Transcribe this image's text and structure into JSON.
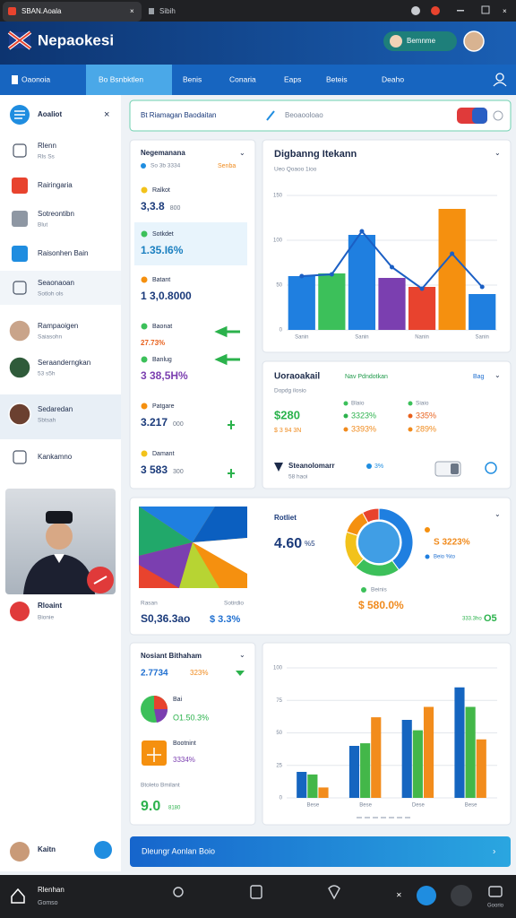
{
  "browser": {
    "tab1": "SBAN.Aoala",
    "tab2": "Sibih"
  },
  "header": {
    "title": "Nepaokesi",
    "pill": "Bemnme"
  },
  "nav": [
    "Oaonoia",
    "Bo Bsnbktlen",
    "Benis",
    "Conaria",
    "Eaps",
    "Beteis",
    "Deaho"
  ],
  "sidebar": {
    "title": "Aoaliot",
    "items": [
      {
        "label": "Rlenn",
        "sub": "Rls Ss"
      },
      {
        "label": "Rairingaria"
      },
      {
        "label": "Sotreontibn",
        "sub": "Blut"
      },
      {
        "label": "Raisonhen Bain"
      },
      {
        "label": "Seaonaoan",
        "sub": "Sotloh ols"
      },
      {
        "label": "Rampaoigen",
        "sub": "Saiasohn"
      },
      {
        "label": "Seraanderngkan",
        "sub": "53 s5h"
      },
      {
        "label": "Sedaredan",
        "sub": "Sbtsah"
      },
      {
        "label": "Kankamno"
      }
    ],
    "video": {
      "caption": "Rloaint",
      "sub": "Bionie"
    },
    "user": "Kaitn"
  },
  "search": {
    "label": "Bt Riamagan Baodaitan",
    "placeholder": "Beoaooloao"
  },
  "metrics": {
    "title": "Negemanana",
    "sub": "So 3b 3334",
    "badge": "Senba",
    "items": [
      {
        "label": "Ralkot",
        "value": "3,3.8",
        "unit": "800"
      },
      {
        "label": "Sotkdet",
        "value": "1.35.I6%"
      },
      {
        "label": "Batant",
        "value": "1 3,0.8000"
      },
      {
        "label": "Baonat",
        "value": "27.73%"
      },
      {
        "label": "Banlug",
        "value": "3 38,5H%"
      },
      {
        "label": "Patgare",
        "value": "3.217",
        "unit": "000"
      },
      {
        "label": "Damant",
        "value": "3 583",
        "unit": "300"
      }
    ]
  },
  "stats_card": {
    "title": "Uoraoakail",
    "tag": "Nav Pdndotkan",
    "link": "Bag",
    "sub": "Dopdg ilosio",
    "main": "$280",
    "main_sub": "$ 3 94  3N",
    "cols": [
      {
        "label": "Blaio",
        "a": "3323%",
        "b": "3393%"
      },
      {
        "label": "Siaio",
        "a": "335%",
        "b": "289%"
      }
    ],
    "row_title": "Steanolomarr",
    "row_sub": "58 haoi",
    "row_value": "3%"
  },
  "donut_card": {
    "left_a": "Rasan",
    "left_b": "Sotirdio",
    "left_value": "S0,36.3ao",
    "left_pct": "$ 3.3%",
    "title": "Rotliet",
    "big": "4.60",
    "big_unit": "%5",
    "legend_a": "S 3223%",
    "legend_b": "Beio %to",
    "bottom_label": "Beinis",
    "bottom_value": "$ 580.0%",
    "foot_a": "333.3ho",
    "foot_b": "O5"
  },
  "list_card": {
    "title": "Nosiant Bithaham",
    "value": "2.7734",
    "pct": "323%",
    "a_label": "Bai",
    "a_value": "O1.50.3%",
    "b_label": "Bootnint",
    "b_value": "3334%",
    "c_label": "Btoleto Bmilant",
    "c_value": "9.0",
    "c_unit": "8180"
  },
  "button": "Dleungr Aonlan Boio",
  "bottom_nav": {
    "a": "Rlenhan",
    "b": "Gomso",
    "c": "Goorio"
  },
  "chart_data": [
    {
      "type": "bar",
      "title": "Digbanng Itekann",
      "subtitle": "Ueo Qoaoo 1ioo",
      "categories": [
        "Sanin",
        null,
        "Sanin",
        null,
        "Nanin",
        null,
        "Sanin"
      ],
      "values": [
        60,
        63,
        106,
        58,
        48,
        135,
        40
      ],
      "colors": [
        "#1f7fe0",
        "#3cc05a",
        "#1f7fe0",
        "#7b3fb0",
        "#e8432e",
        "#f5900f",
        "#1f7fe0"
      ],
      "line_values": [
        60,
        62,
        110,
        70,
        46,
        85,
        48
      ],
      "line_color": "#1b5fc4",
      "ylim": [
        0,
        160
      ],
      "yticks": [
        0,
        50,
        100,
        150
      ],
      "grid": true
    },
    {
      "type": "pie",
      "donut": true,
      "values": [
        40,
        22,
        18,
        12,
        8
      ],
      "colors": [
        "#1f7fe0",
        "#3cc05a",
        "#f2c21b",
        "#f5900f",
        "#e8432e"
      ]
    },
    {
      "type": "bar",
      "categories": [
        "Bese",
        "Bese",
        "Dese",
        "Bese"
      ],
      "series": [
        {
          "color": "#1565c0",
          "values": [
            20,
            40,
            60,
            85
          ]
        },
        {
          "color": "#43b749",
          "values": [
            18,
            42,
            52,
            70
          ]
        },
        {
          "color": "#f28c1c",
          "values": [
            8,
            62,
            70,
            45
          ]
        }
      ],
      "ylim": [
        0,
        100
      ],
      "yticks": [
        0,
        25,
        50,
        75,
        100
      ],
      "grid": true
    }
  ]
}
